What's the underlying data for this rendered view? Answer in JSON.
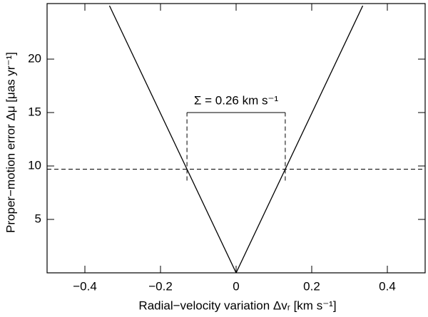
{
  "chart_data": {
    "type": "line",
    "x_label": "Radial−velocity variation Δvᵣ [km s⁻¹]",
    "y_label": "Proper−motion error Δμ [μas yr⁻¹]",
    "series": [
      {
        "color": "#000000",
        "x": [
          -0.335,
          0,
          0.335
        ],
        "values": [
          25,
          0,
          25
        ]
      }
    ],
    "reference_lines": {
      "y": 9.7,
      "x": [
        -0.13,
        0.13
      ]
    },
    "annotation": {
      "text": "Σ = 0.26 km s⁻¹",
      "x": 0,
      "y": 15
    },
    "xlim": [
      -0.5,
      0.5
    ],
    "ylim": [
      0,
      25.2
    ],
    "xticks": [
      {
        "value": -0.4,
        "label": "−0.4"
      },
      {
        "value": -0.2,
        "label": "−0.2"
      },
      0,
      0.2,
      0.4
    ],
    "yticks": [
      5,
      10,
      15,
      20
    ]
  }
}
